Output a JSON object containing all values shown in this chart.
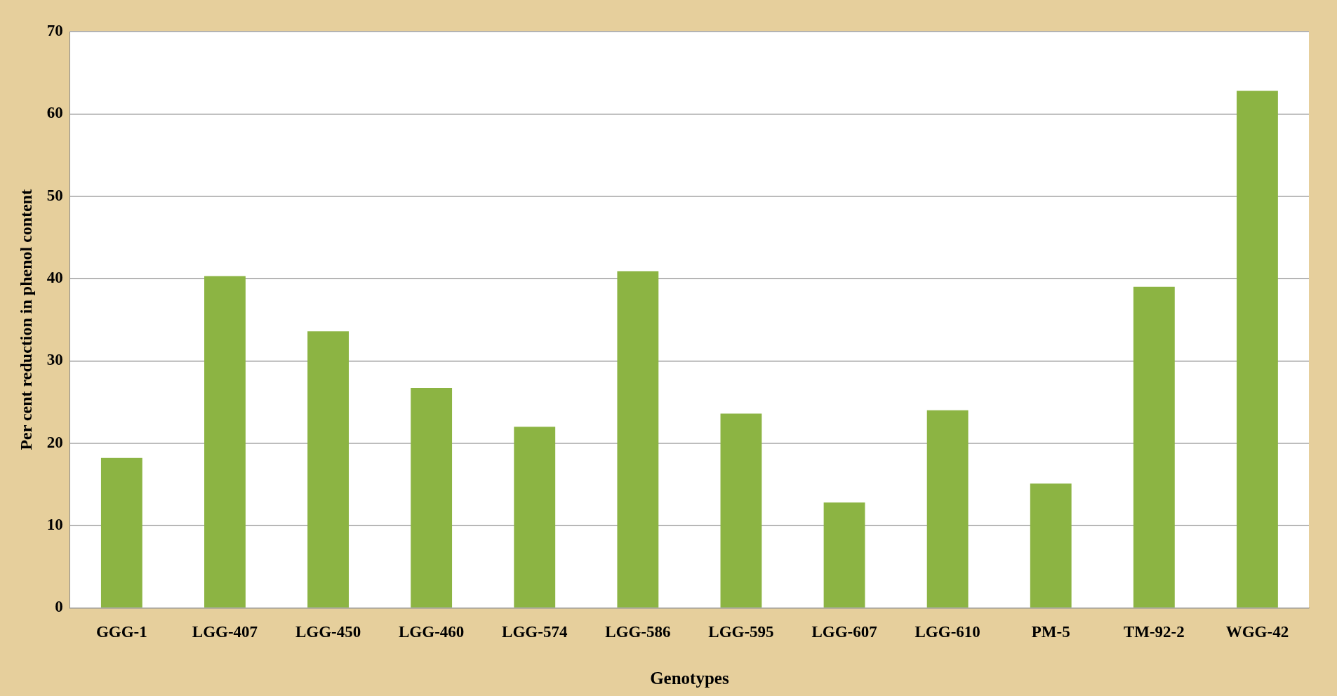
{
  "chart_data": {
    "type": "bar",
    "xlabel": "Genotypes",
    "ylabel": "Per cent reduction in phenol content",
    "categories": [
      "GGG-1",
      "LGG-407",
      "LGG-450",
      "LGG-460",
      "LGG-574",
      "LGG-586",
      "LGG-595",
      "LGG-607",
      "LGG-610",
      "PM-5",
      "TM-92-2",
      "WGG-42"
    ],
    "values": [
      18.2,
      40.3,
      33.6,
      26.7,
      22.0,
      40.9,
      23.6,
      12.8,
      24.0,
      15.1,
      39.0,
      62.8
    ],
    "color": "#8cb443",
    "ylim": [
      0,
      70
    ],
    "yticks": [
      0,
      10,
      20,
      30,
      40,
      50,
      60,
      70
    ],
    "grid": "y"
  }
}
